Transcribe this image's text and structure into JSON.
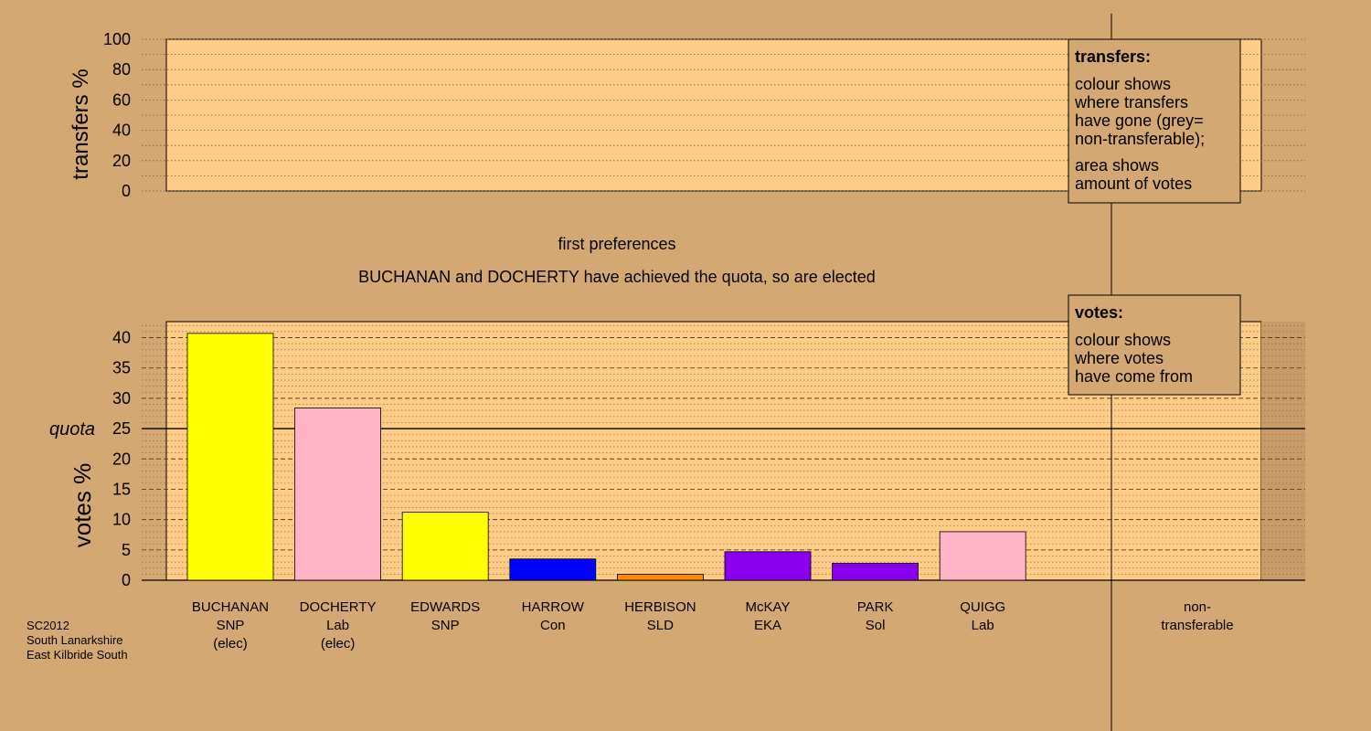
{
  "colors": {
    "background": "#D4A872",
    "plot_fill": "#FFCC88",
    "SNP": "#FFFF00",
    "Lab": "#FFB3C6",
    "Con": "#0000FF",
    "SLD": "#FF8800",
    "EKA": "#8800EE",
    "Sol": "#8800EE"
  },
  "chart_data": [
    {
      "type": "bar",
      "name": "transfers",
      "ylabel": "transfers %",
      "ylim": [
        0,
        100
      ],
      "yticks": [
        "0",
        "20",
        "40",
        "60",
        "80",
        "100"
      ],
      "values": [],
      "legend": {
        "title": "transfers:",
        "lines1": [
          "colour shows",
          "where transfers",
          "have gone (grey=",
          "non-transferable);"
        ],
        "lines2": [
          "area shows",
          "amount of votes"
        ],
        "placement": "top-right"
      }
    },
    {
      "type": "bar",
      "name": "votes",
      "ylabel": "votes %",
      "ylim": [
        0,
        42
      ],
      "yticks": [
        "0",
        "5",
        "10",
        "15",
        "20",
        "25",
        "30",
        "35",
        "40"
      ],
      "quota": 25,
      "quota_label": "quota",
      "categories": [
        {
          "name": "BUCHANAN",
          "party": "SNP",
          "status": "(elec)",
          "value": 40.7,
          "color": "#FFFF00"
        },
        {
          "name": "DOCHERTY",
          "party": "Lab",
          "status": "(elec)",
          "value": 28.4,
          "color": "#FFB3C6"
        },
        {
          "name": "EDWARDS",
          "party": "SNP",
          "status": "",
          "value": 11.2,
          "color": "#FFFF00"
        },
        {
          "name": "HARROW",
          "party": "Con",
          "status": "",
          "value": 3.5,
          "color": "#0000FF"
        },
        {
          "name": "HERBISON",
          "party": "SLD",
          "status": "",
          "value": 1.0,
          "color": "#FF8800"
        },
        {
          "name": "McKAY",
          "party": "EKA",
          "status": "",
          "value": 4.7,
          "color": "#8800EE"
        },
        {
          "name": "PARK",
          "party": "Sol",
          "status": "",
          "value": 2.8,
          "color": "#8800EE"
        },
        {
          "name": "QUIGG",
          "party": "Lab",
          "status": "",
          "value": 8.0,
          "color": "#FFB3C6"
        }
      ],
      "nontransferable": {
        "line1": "non-",
        "line2": "transferable",
        "value": 0
      },
      "legend": {
        "title": "votes:",
        "lines": [
          "colour shows",
          "where votes",
          "have come from"
        ],
        "placement": "top-right"
      }
    }
  ],
  "stage_title": "first preferences",
  "status_message": "BUCHANAN and DOCHERTY have achieved the quota, so are elected",
  "footer": {
    "line1": "SC2012",
    "line2": "South Lanarkshire",
    "line3": "East Kilbride South"
  }
}
